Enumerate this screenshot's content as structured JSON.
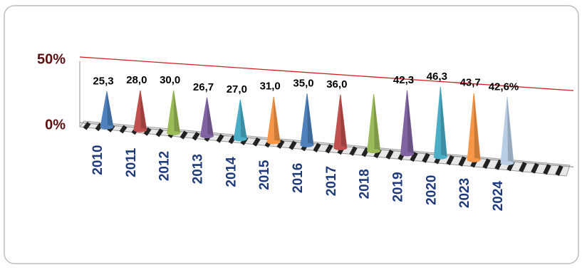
{
  "chart_data": {
    "type": "cone",
    "categories": [
      "2010",
      "2011",
      "2012",
      "2013",
      "2014",
      "2015",
      "2016",
      "2017",
      "2018",
      "2019",
      "2020",
      "2023",
      "2024"
    ],
    "values": [
      25.3,
      28.0,
      30.0,
      26.7,
      27.0,
      31.0,
      35.0,
      36.0,
      38.0,
      42.3,
      46.3,
      43.7,
      42.6
    ],
    "value_labels": [
      "25,3",
      "28,0",
      "30,0",
      "26,7",
      "27,0",
      "31,0",
      "35,0",
      "36,0",
      null,
      "42,3",
      "46,3",
      "43,7",
      "42,6%"
    ],
    "colors": [
      "#4f81bd",
      "#c0504d",
      "#9bbb59",
      "#8064a2",
      "#4bacc6",
      "#f79646",
      "#4f81bd",
      "#c0504d",
      "#9bbb59",
      "#8064a2",
      "#4bacc6",
      "#f79646",
      "#b9cde5"
    ],
    "ylim": [
      0,
      50
    ],
    "yticks": [
      {
        "value": 0,
        "label": "0%"
      },
      {
        "value": 50,
        "label": "50%"
      }
    ],
    "grid": true
  }
}
